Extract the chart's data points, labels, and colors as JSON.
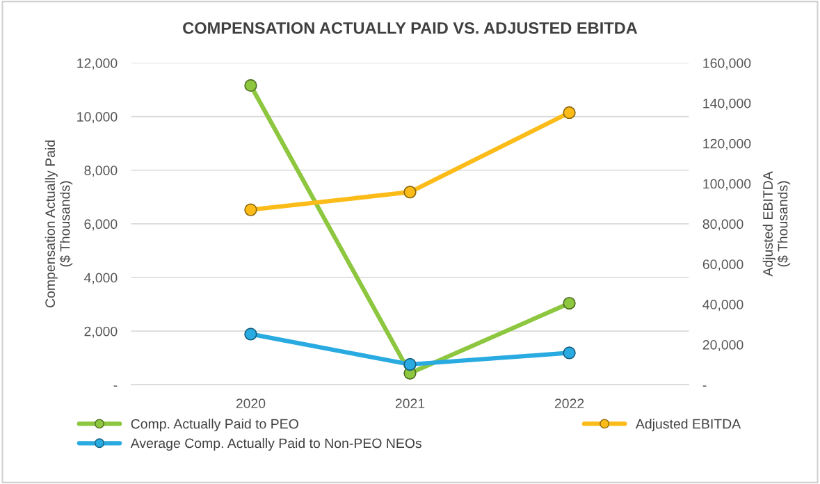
{
  "chart_data": {
    "type": "line",
    "title": "COMPENSATION ACTUALLY PAID VS. ADJUSTED EBITDA",
    "categories": [
      "2020",
      "2021",
      "2022"
    ],
    "ylabel": "Compensation Actually Paid\n($ Thousands)",
    "y2label": "Adjusted EBITDA\n($ Thousands)",
    "series": [
      {
        "name": "Comp. Actually Paid to PEO",
        "color": "#8dc63f",
        "values": [
          11160,
          430,
          3040
        ]
      },
      {
        "name": "Average Comp. Actually Paid to Non-PEO NEOs",
        "color": "#29abe2",
        "values": [
          1890,
          760,
          1190
        ]
      },
      {
        "name": "Adjusted EBITDA",
        "color": "#fbbc1a",
        "values": [
          87000,
          95800,
          135300
        ],
        "axis": "y2"
      }
    ],
    "ylim": [
      0,
      12000
    ],
    "yticks": [
      {
        "value": 0,
        "label": "-"
      },
      {
        "value": 2000,
        "label": "2,000"
      },
      {
        "value": 4000,
        "label": "4,000"
      },
      {
        "value": 6000,
        "label": "6,000"
      },
      {
        "value": 8000,
        "label": "8,000"
      },
      {
        "value": 10000,
        "label": "10,000"
      },
      {
        "value": 12000,
        "label": "12,000"
      }
    ],
    "y2lim": [
      0,
      160000
    ],
    "y2ticks": [
      {
        "value": 0,
        "label": "-"
      },
      {
        "value": 20000,
        "label": "20,000"
      },
      {
        "value": 40000,
        "label": "40,000"
      },
      {
        "value": 60000,
        "label": "60,000"
      },
      {
        "value": 80000,
        "label": "80,000"
      },
      {
        "value": 100000,
        "label": "100,000"
      },
      {
        "value": 120000,
        "label": "120,000"
      },
      {
        "value": 140000,
        "label": "140,000"
      },
      {
        "value": 160000,
        "label": "160,000"
      }
    ],
    "grid": "y",
    "legend": "bottom",
    "marker": "circle",
    "line_style": "solid"
  }
}
